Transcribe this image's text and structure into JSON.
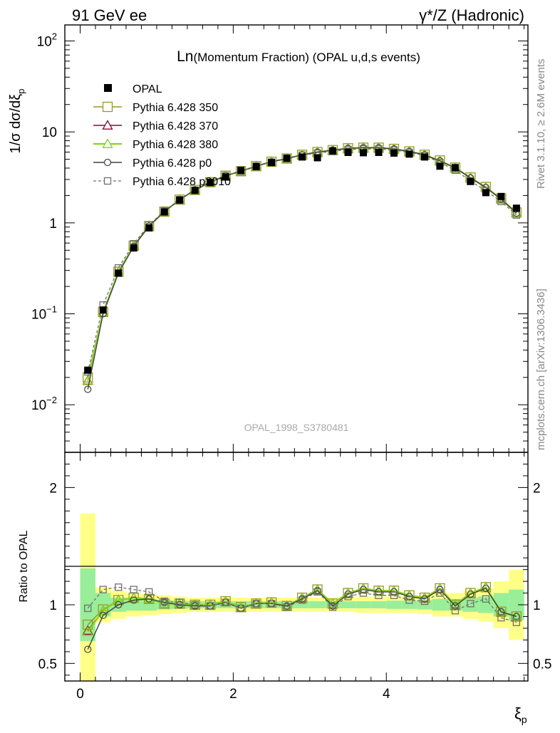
{
  "header": {
    "left": "91 GeV ee",
    "right": "γ*/Z (Hadronic)"
  },
  "side_text": {
    "rivet": "Rivet 3.1.10, ≥ 2.6M events",
    "source": "mcplots.cern.ch [arXiv:1306.3436]"
  },
  "colors": {
    "data": "#000000",
    "p350": "#999926",
    "p370": "#990033",
    "p380": "#88d220",
    "p0": "#404040",
    "p2010": "#707070",
    "band_inner": "#99ee99",
    "band_outer": "#ffff88"
  },
  "chart_data": [
    {
      "type": "line",
      "title_prefix": "Ln",
      "title": "(Momentum Fraction) (OPAL u,d,s events)",
      "watermark": "OPAL_1998_S3780481",
      "ylabel": "1/σ dσ/dξ",
      "ylabel_sub": "p",
      "yscale": "log",
      "ylim": [
        0.003,
        150
      ],
      "xlim": [
        -0.2,
        5.85
      ],
      "yticks": [
        {
          "v": 0.01,
          "base": "10",
          "exp": "−2"
        },
        {
          "v": 0.1,
          "base": "10",
          "exp": "−1"
        },
        {
          "v": 1,
          "base": "1",
          "exp": ""
        },
        {
          "v": 10,
          "base": "10",
          "exp": ""
        },
        {
          "v": 100,
          "base": "10",
          "exp": "2"
        }
      ],
      "legend_position": "top-left",
      "legend": [
        {
          "label": "OPAL",
          "key": "data"
        },
        {
          "label": "Pythia 6.428 350",
          "key": "p350"
        },
        {
          "label": "Pythia 6.428 370",
          "key": "p370"
        },
        {
          "label": "Pythia 6.428 380",
          "key": "p380"
        },
        {
          "label": "Pythia 6.428 p0",
          "key": "p0"
        },
        {
          "label": "Pythia 6.428 p2010",
          "key": "p2010"
        }
      ],
      "x": [
        0.1,
        0.3,
        0.5,
        0.7,
        0.9,
        1.1,
        1.3,
        1.5,
        1.7,
        1.9,
        2.1,
        2.3,
        2.5,
        2.7,
        2.9,
        3.1,
        3.3,
        3.5,
        3.7,
        3.9,
        4.1,
        4.3,
        4.5,
        4.7,
        4.9,
        5.1,
        5.3,
        5.5,
        5.7
      ],
      "data": [
        0.024,
        0.11,
        0.28,
        0.53,
        0.88,
        1.32,
        1.78,
        2.28,
        2.78,
        3.2,
        3.78,
        4.15,
        4.6,
        5.15,
        5.3,
        5.2,
        6.2,
        5.95,
        5.9,
        5.95,
        5.85,
        5.7,
        5.3,
        4.2,
        4.05,
        2.85,
        2.15,
        1.95,
        1.45
      ],
      "series": [
        {
          "name": "Pythia 6.428 350",
          "key": "p350",
          "values": [
            0.02,
            0.105,
            0.29,
            0.56,
            0.92,
            1.33,
            1.8,
            2.3,
            2.8,
            3.3,
            3.7,
            4.2,
            4.7,
            5.1,
            5.6,
            6.0,
            6.3,
            6.6,
            6.7,
            6.7,
            6.5,
            6.1,
            5.6,
            4.85,
            4.05,
            3.15,
            2.48,
            1.85,
            1.3
          ]
        },
        {
          "name": "Pythia 6.428 370",
          "key": "p370",
          "values": [
            0.0185,
            0.104,
            0.29,
            0.56,
            0.92,
            1.33,
            1.8,
            2.3,
            2.8,
            3.3,
            3.7,
            4.2,
            4.7,
            5.1,
            5.6,
            6.0,
            6.3,
            6.6,
            6.7,
            6.7,
            6.5,
            6.1,
            5.6,
            4.8,
            4.02,
            3.12,
            2.45,
            1.82,
            1.28
          ]
        },
        {
          "name": "Pythia 6.428 380",
          "key": "p380",
          "values": [
            0.0183,
            0.104,
            0.29,
            0.56,
            0.92,
            1.33,
            1.8,
            2.3,
            2.8,
            3.3,
            3.7,
            4.2,
            4.7,
            5.1,
            5.6,
            6.0,
            6.3,
            6.6,
            6.7,
            6.7,
            6.5,
            6.1,
            5.6,
            4.8,
            4.02,
            3.12,
            2.45,
            1.82,
            1.28
          ]
        },
        {
          "name": "Pythia 6.428 p0",
          "key": "p0",
          "values": [
            0.0148,
            0.1,
            0.28,
            0.55,
            0.92,
            1.33,
            1.8,
            2.3,
            2.8,
            3.3,
            3.7,
            4.2,
            4.7,
            5.1,
            5.6,
            6.0,
            6.3,
            6.6,
            6.7,
            6.7,
            6.5,
            6.1,
            5.6,
            4.8,
            4.02,
            3.12,
            2.45,
            1.82,
            1.28
          ]
        },
        {
          "name": "Pythia 6.428 p2010",
          "key": "p2010",
          "values": [
            0.023,
            0.125,
            0.32,
            0.59,
            0.95,
            1.35,
            1.8,
            2.27,
            2.78,
            3.3,
            3.7,
            4.2,
            4.65,
            5.05,
            5.55,
            5.85,
            6.1,
            6.4,
            6.5,
            6.5,
            6.3,
            5.95,
            5.5,
            4.6,
            3.8,
            2.88,
            2.25,
            1.72,
            1.22
          ]
        }
      ]
    },
    {
      "type": "line",
      "ylabel": "Ratio to OPAL",
      "xlabel": "ξ",
      "xlabel_sub": "p",
      "ylim": [
        0.35,
        2.3
      ],
      "xlim": [
        -0.2,
        5.85
      ],
      "yticks": [
        0.5,
        1,
        2
      ],
      "xticks": [
        0,
        2,
        4
      ],
      "x": [
        0.1,
        0.3,
        0.5,
        0.7,
        0.9,
        1.1,
        1.3,
        1.5,
        1.7,
        1.9,
        2.1,
        2.3,
        2.5,
        2.7,
        2.9,
        3.1,
        3.3,
        3.5,
        3.7,
        3.9,
        4.1,
        4.3,
        4.5,
        4.7,
        4.9,
        5.1,
        5.3,
        5.5,
        5.7
      ],
      "band_inner": [
        0.31,
        0.1,
        0.06,
        0.05,
        0.05,
        0.04,
        0.035,
        0.03,
        0.03,
        0.03,
        0.03,
        0.03,
        0.03,
        0.03,
        0.03,
        0.03,
        0.03,
        0.03,
        0.03,
        0.03,
        0.035,
        0.035,
        0.04,
        0.05,
        0.05,
        0.06,
        0.07,
        0.1,
        0.13
      ],
      "band_outer": [
        0.78,
        0.15,
        0.12,
        0.1,
        0.09,
        0.08,
        0.07,
        0.06,
        0.06,
        0.06,
        0.06,
        0.06,
        0.06,
        0.06,
        0.06,
        0.06,
        0.06,
        0.06,
        0.07,
        0.07,
        0.07,
        0.07,
        0.08,
        0.1,
        0.1,
        0.12,
        0.14,
        0.2,
        0.3
      ],
      "series": [
        {
          "name": "Pythia 6.428 350",
          "key": "p350",
          "values": [
            0.83,
            0.96,
            1.04,
            1.06,
            1.05,
            1.01,
            1.01,
            1.0,
            1.0,
            1.03,
            0.98,
            1.01,
            1.02,
            0.99,
            1.06,
            1.13,
            1.01,
            1.1,
            1.14,
            1.12,
            1.12,
            1.08,
            1.06,
            1.14,
            1.0,
            1.1,
            1.15,
            0.94,
            0.9
          ]
        },
        {
          "name": "Pythia 6.428 370",
          "key": "p370",
          "values": [
            0.78,
            0.95,
            1.04,
            1.06,
            1.05,
            1.01,
            1.01,
            1.0,
            1.0,
            1.03,
            0.98,
            1.01,
            1.02,
            0.99,
            1.06,
            1.13,
            1.01,
            1.1,
            1.14,
            1.12,
            1.12,
            1.08,
            1.06,
            1.14,
            1.0,
            1.1,
            1.15,
            0.94,
            0.9
          ]
        },
        {
          "name": "Pythia 6.428 380",
          "key": "p380",
          "values": [
            0.77,
            0.95,
            1.04,
            1.06,
            1.05,
            1.01,
            1.01,
            1.0,
            1.0,
            1.03,
            0.98,
            1.01,
            1.02,
            0.99,
            1.06,
            1.13,
            1.01,
            1.1,
            1.14,
            1.12,
            1.12,
            1.08,
            1.06,
            1.14,
            1.0,
            1.1,
            1.15,
            0.94,
            0.9
          ]
        },
        {
          "name": "Pythia 6.428 p0",
          "key": "p0",
          "values": [
            0.62,
            0.91,
            1.0,
            1.04,
            1.05,
            1.02,
            1.0,
            0.99,
            0.99,
            1.02,
            0.97,
            1.01,
            1.01,
            0.99,
            1.05,
            1.12,
            0.99,
            1.09,
            1.13,
            1.11,
            1.11,
            1.07,
            1.05,
            1.13,
            0.99,
            1.09,
            1.14,
            0.94,
            0.9
          ]
        },
        {
          "name": "Pythia 6.428 p2010",
          "key": "p2010",
          "values": [
            0.97,
            1.13,
            1.15,
            1.13,
            1.11,
            1.03,
            1.02,
            1.0,
            0.99,
            1.02,
            0.97,
            1.01,
            1.01,
            0.98,
            1.04,
            1.11,
            0.98,
            1.07,
            1.1,
            1.08,
            1.08,
            1.04,
            1.03,
            1.1,
            0.95,
            1.01,
            1.05,
            0.89,
            0.85
          ]
        }
      ]
    }
  ]
}
